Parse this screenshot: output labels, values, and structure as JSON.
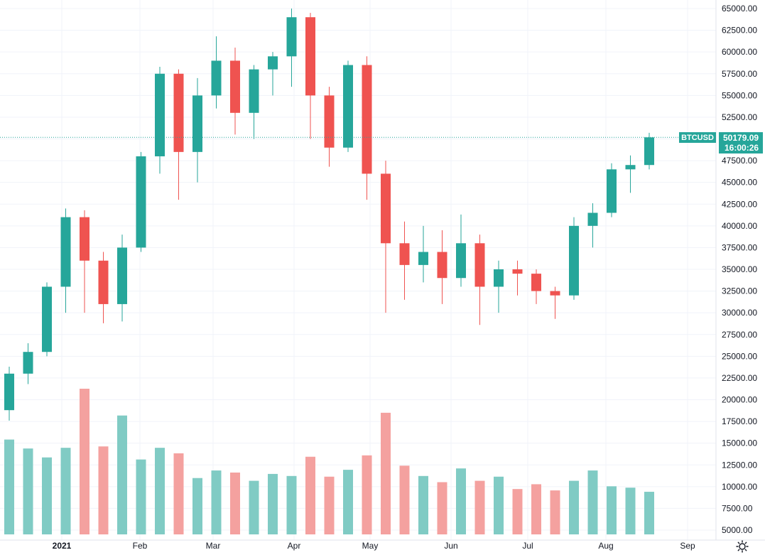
{
  "chart_data": {
    "type": "candlestick",
    "symbol": "BTCUSD",
    "last_price": "50179.09",
    "countdown": "16:00:26",
    "price_axis": {
      "min": 5000,
      "max": 65000,
      "ticks": [
        "65000.00",
        "62500.00",
        "60000.00",
        "57500.00",
        "55000.00",
        "52500.00",
        "50000.00",
        "47500.00",
        "45000.00",
        "42500.00",
        "40000.00",
        "37500.00",
        "35000.00",
        "32500.00",
        "30000.00",
        "27500.00",
        "25000.00",
        "22500.00",
        "20000.00",
        "17500.00",
        "15000.00",
        "12500.00",
        "10000.00",
        "7500.00",
        "5000.00"
      ]
    },
    "time_axis": {
      "labels": [
        "2021",
        "Feb",
        "Mar",
        "Apr",
        "May",
        "Jun",
        "Jul",
        "Aug",
        "Sep"
      ]
    },
    "ohlc_weekly": [
      {
        "date": "2020-12-28",
        "open": 18800,
        "high": 23800,
        "low": 17600,
        "close": 23000
      },
      {
        "date": "2021-01-04",
        "open": 23000,
        "high": 26500,
        "low": 21800,
        "close": 25500
      },
      {
        "date": "2021-01-11",
        "open": 25500,
        "high": 33500,
        "low": 25000,
        "close": 33000
      },
      {
        "date": "2021-01-18",
        "open": 33000,
        "high": 42000,
        "low": 30000,
        "close": 41000
      },
      {
        "date": "2021-01-25",
        "open": 41000,
        "high": 41800,
        "low": 30000,
        "close": 36000
      },
      {
        "date": "2021-02-01",
        "open": 36000,
        "high": 37000,
        "low": 28800,
        "close": 31000
      },
      {
        "date": "2021-02-08",
        "open": 31000,
        "high": 39000,
        "low": 29000,
        "close": 37500
      },
      {
        "date": "2021-02-15",
        "open": 37500,
        "high": 48500,
        "low": 37000,
        "close": 48000
      },
      {
        "date": "2021-02-22",
        "open": 48000,
        "high": 58300,
        "low": 46000,
        "close": 57500
      },
      {
        "date": "2021-03-01",
        "open": 57500,
        "high": 58000,
        "low": 43000,
        "close": 48500
      },
      {
        "date": "2021-03-08",
        "open": 48500,
        "high": 57000,
        "low": 45000,
        "close": 55000
      },
      {
        "date": "2021-03-15",
        "open": 55000,
        "high": 61800,
        "low": 53500,
        "close": 59000
      },
      {
        "date": "2021-03-22",
        "open": 59000,
        "high": 60500,
        "low": 50500,
        "close": 53000
      },
      {
        "date": "2021-03-29",
        "open": 53000,
        "high": 58500,
        "low": 50000,
        "close": 58000
      },
      {
        "date": "2021-04-05",
        "open": 58000,
        "high": 60000,
        "low": 55000,
        "close": 59500
      },
      {
        "date": "2021-04-12",
        "open": 59500,
        "high": 65000,
        "low": 56000,
        "close": 64000
      },
      {
        "date": "2021-04-19",
        "open": 64000,
        "high": 64500,
        "low": 50000,
        "close": 55000
      },
      {
        "date": "2021-04-26",
        "open": 55000,
        "high": 56000,
        "low": 46800,
        "close": 49000
      },
      {
        "date": "2021-05-03",
        "open": 49000,
        "high": 59000,
        "low": 48500,
        "close": 58500
      },
      {
        "date": "2021-05-10",
        "open": 58500,
        "high": 59500,
        "low": 43000,
        "close": 46000
      },
      {
        "date": "2021-05-17",
        "open": 46000,
        "high": 47500,
        "low": 30000,
        "close": 38000
      },
      {
        "date": "2021-05-24",
        "open": 38000,
        "high": 40500,
        "low": 31500,
        "close": 35500
      },
      {
        "date": "2021-05-31",
        "open": 35500,
        "high": 40000,
        "low": 33500,
        "close": 37000
      },
      {
        "date": "2021-06-07",
        "open": 37000,
        "high": 39500,
        "low": 31000,
        "close": 34000
      },
      {
        "date": "2021-06-14",
        "open": 34000,
        "high": 41300,
        "low": 33000,
        "close": 38000
      },
      {
        "date": "2021-06-21",
        "open": 38000,
        "high": 39000,
        "low": 28600,
        "close": 33000
      },
      {
        "date": "2021-06-28",
        "open": 33000,
        "high": 36000,
        "low": 30000,
        "close": 35000
      },
      {
        "date": "2021-07-05",
        "open": 35000,
        "high": 36000,
        "low": 32000,
        "close": 34500
      },
      {
        "date": "2021-07-12",
        "open": 34500,
        "high": 35000,
        "low": 31000,
        "close": 32500
      },
      {
        "date": "2021-07-19",
        "open": 32500,
        "high": 33000,
        "low": 29300,
        "close": 32000
      },
      {
        "date": "2021-07-26",
        "open": 32000,
        "high": 41000,
        "low": 31500,
        "close": 40000
      },
      {
        "date": "2021-08-02",
        "open": 40000,
        "high": 42600,
        "low": 37500,
        "close": 41500
      },
      {
        "date": "2021-08-09",
        "open": 41500,
        "high": 47200,
        "low": 41000,
        "close": 46500
      },
      {
        "date": "2021-08-16",
        "open": 46500,
        "high": 48100,
        "low": 43800,
        "close": 47000
      },
      {
        "date": "2021-08-23",
        "open": 47000,
        "high": 50700,
        "low": 46500,
        "close": 50179
      }
    ],
    "volume_weekly": [
      13800,
      12500,
      11200,
      12600,
      21200,
      12800,
      17300,
      10900,
      12600,
      11800,
      8200,
      9300,
      9000,
      7800,
      8800,
      8500,
      11300,
      8400,
      9400,
      11500,
      17700,
      10000,
      8500,
      7600,
      9600,
      7800,
      8400,
      6600,
      7300,
      6400,
      7800,
      9300,
      7000,
      6800,
      6200
    ],
    "colors": {
      "up": "#26a69a",
      "down": "#ef5350",
      "up_volume": "#80cbc4",
      "down_volume": "#f4a19f",
      "grid": "#f0f3fa",
      "axis_text": "#131722",
      "last_price_badge": "#26a69a"
    }
  }
}
